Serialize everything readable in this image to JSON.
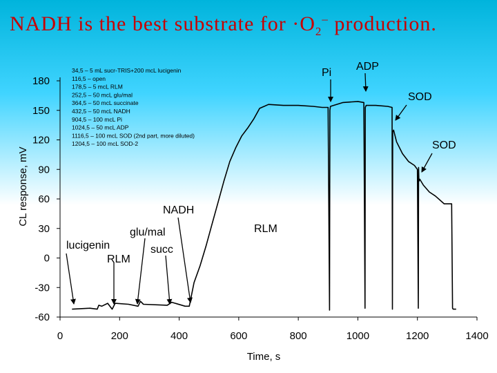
{
  "title": {
    "main": "NADH is the best substrate for ·O",
    "sub": "2",
    "sup": "–",
    "end": " production."
  },
  "chart_data": {
    "type": "line",
    "title": "NADH is the best substrate for ·O2– production.",
    "xlabel": "Time, s",
    "ylabel": "CL response, mV",
    "xlim": [
      0,
      1400
    ],
    "ylim": [
      -60,
      180
    ],
    "xticks": [
      0,
      200,
      400,
      600,
      800,
      1000,
      1200,
      1400
    ],
    "yticks": [
      180,
      150,
      120,
      90,
      60,
      30,
      0,
      -30,
      -60
    ],
    "grid": false,
    "legend_lines": [
      "34,5 – 5 mL sucr-TRIS+200 mcL lucigenin",
      "116,5 – open",
      "178,5 – 5 mcL RLM",
      "252,5 – 50 mcL glu/mal",
      "364,5 – 50 mcL succinate",
      "432,5 – 50 mcL NADH",
      "904,5 – 100 mcL Pi",
      "1024,5 – 50 mcL ADP",
      "1116,5 – 100 mcL SOD (2nd part, more diluted)",
      "1204,5 – 100 mcL SOD-2"
    ],
    "series": [
      {
        "color": "#000000",
        "x": [
          40,
          100,
          125,
          130,
          140,
          160,
          175,
          185,
          230,
          262,
          270,
          280,
          360,
          375,
          420,
          434,
          440,
          450,
          470,
          490,
          510,
          530,
          550,
          570,
          590,
          610,
          630,
          650,
          670,
          700,
          750,
          800,
          850,
          880,
          900,
          905,
          906,
          908,
          950,
          1000,
          1020,
          1024,
          1025,
          1028,
          1060,
          1100,
          1115,
          1116,
          1117,
          1120,
          1130,
          1150,
          1170,
          1190,
          1200,
          1203,
          1204,
          1205,
          1208,
          1220,
          1240,
          1260,
          1290,
          1315,
          1318,
          1320,
          1325,
          1330
        ],
        "y": [
          -52,
          -51,
          -52,
          -48,
          -49,
          -46,
          -52,
          -46,
          -47,
          -49,
          -44,
          -47,
          -48,
          -45,
          -49,
          -49,
          -40,
          -25,
          -8,
          12,
          34,
          56,
          78,
          98,
          112,
          124,
          132,
          141,
          152,
          156,
          155,
          155,
          154,
          153,
          153,
          -53,
          150,
          154,
          158,
          159,
          158,
          -51,
          153,
          155,
          155,
          154,
          153,
          -52,
          128,
          130,
          118,
          106,
          98,
          94,
          90,
          -51,
          92,
          78,
          80,
          74,
          67,
          63,
          55,
          55,
          -51,
          -52,
          -52,
          -52
        ]
      }
    ],
    "annotations": [
      {
        "text": "lucigenin",
        "x": 50
      },
      {
        "text": "RLM",
        "x": 178
      },
      {
        "text": "glu/mal",
        "x": 262
      },
      {
        "text": "succ",
        "x": 364
      },
      {
        "text": "NADH",
        "x": 432
      },
      {
        "text": "RLM",
        "x": null
      },
      {
        "text": "Pi",
        "x": 904
      },
      {
        "text": "ADP",
        "x": 1024
      },
      {
        "text": "SOD",
        "x": 1116
      },
      {
        "text": "SOD",
        "x": 1204
      }
    ]
  }
}
